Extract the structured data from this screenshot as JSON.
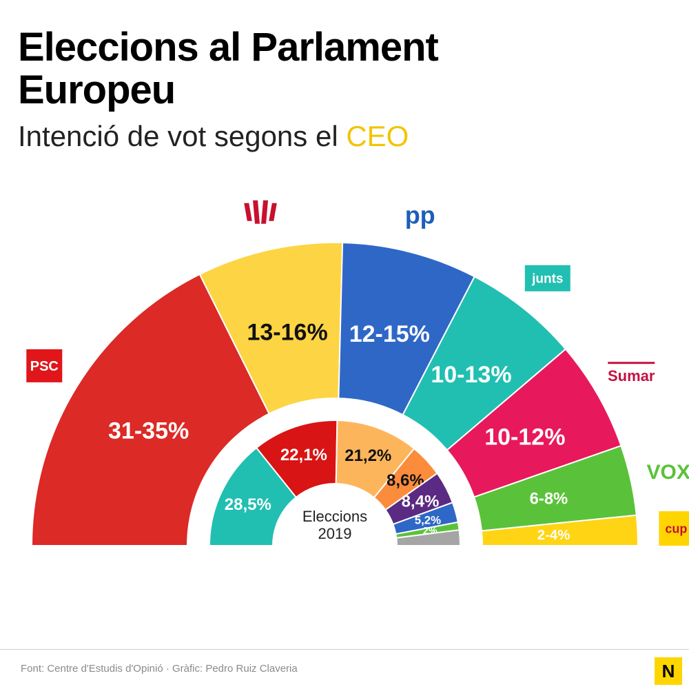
{
  "title": "Eleccions al Parlament Europeu",
  "subtitle_prefix": "Intenció de vot segons el",
  "subtitle_highlight": "CEO",
  "source": "Font: Centre d'Estudis d'Opinió · Gràfic: Pedro Ruiz Claveria",
  "brand_mark": "N",
  "colors": {
    "highlight": "#f2c500",
    "brand": "#ffd500"
  },
  "chart_data": [
    {
      "type": "semicircle-donut",
      "title": "Intenció de vot segons el CEO",
      "series": [
        {
          "party": "PSC",
          "label": "31-35%",
          "min": 31,
          "max": 35,
          "value": 33,
          "color": "#dc2a26",
          "text_color": "#ffffff",
          "logo_text": "PSC",
          "logo_icon": "psc-logo-icon"
        },
        {
          "party": "ERC",
          "label": "13-16%",
          "min": 13,
          "max": 16,
          "value": 14.5,
          "color": "#fdd443",
          "text_color": "#111111",
          "logo_text": "",
          "logo_icon": "erc-logo-icon"
        },
        {
          "party": "PP",
          "label": "12-15%",
          "min": 12,
          "max": 15,
          "value": 13.5,
          "color": "#2f67c7",
          "text_color": "#ffffff",
          "logo_text": "pp",
          "logo_icon": "pp-logo-icon"
        },
        {
          "party": "Junts",
          "label": "10-13%",
          "min": 10,
          "max": 13,
          "value": 11.5,
          "color": "#21bfb1",
          "text_color": "#ffffff",
          "logo_text": "junts",
          "logo_icon": "junts-logo-icon"
        },
        {
          "party": "Sumar",
          "label": "10-12%",
          "min": 10,
          "max": 12,
          "value": 11,
          "color": "#e8185c",
          "text_color": "#ffffff",
          "logo_text": "Sumar",
          "logo_icon": "sumar-logo-icon"
        },
        {
          "party": "Vox",
          "label": "6-8%",
          "min": 6,
          "max": 8,
          "value": 7,
          "color": "#5ac23a",
          "text_color": "#ffffff",
          "logo_text": "VOX",
          "logo_icon": "vox-logo-icon"
        },
        {
          "party": "CUP",
          "label": "2-4%",
          "min": 2,
          "max": 4,
          "value": 3,
          "color": "#ffd414",
          "text_color": "#ffffff",
          "logo_text": "cup",
          "logo_icon": "cup-logo-icon"
        }
      ]
    },
    {
      "type": "semicircle-donut",
      "title": "Eleccions 2019",
      "center_label_line1": "Eleccions",
      "center_label_line2": "2019",
      "series": [
        {
          "label": "28,5%",
          "value": 28.5,
          "color": "#21bfb1",
          "text_color": "#ffffff"
        },
        {
          "label": "22,1%",
          "value": 22.1,
          "color": "#d91414",
          "text_color": "#ffffff"
        },
        {
          "label": "21,2%",
          "value": 21.2,
          "color": "#fdb55c",
          "text_color": "#111111"
        },
        {
          "label": "8,6%",
          "value": 8.6,
          "color": "#fb8c3c",
          "text_color": "#111111"
        },
        {
          "label": "8,4%",
          "value": 8.4,
          "color": "#5b2a82",
          "text_color": "#ffffff"
        },
        {
          "label": "5,2%",
          "value": 5.2,
          "color": "#2f67c7",
          "text_color": "#ffffff"
        },
        {
          "label": "2%",
          "value": 2,
          "color": "#5ac23a",
          "text_color": "#ffffff"
        },
        {
          "label": "",
          "value": 4,
          "color": "#a5a5a5",
          "text_color": "#ffffff"
        }
      ]
    }
  ]
}
